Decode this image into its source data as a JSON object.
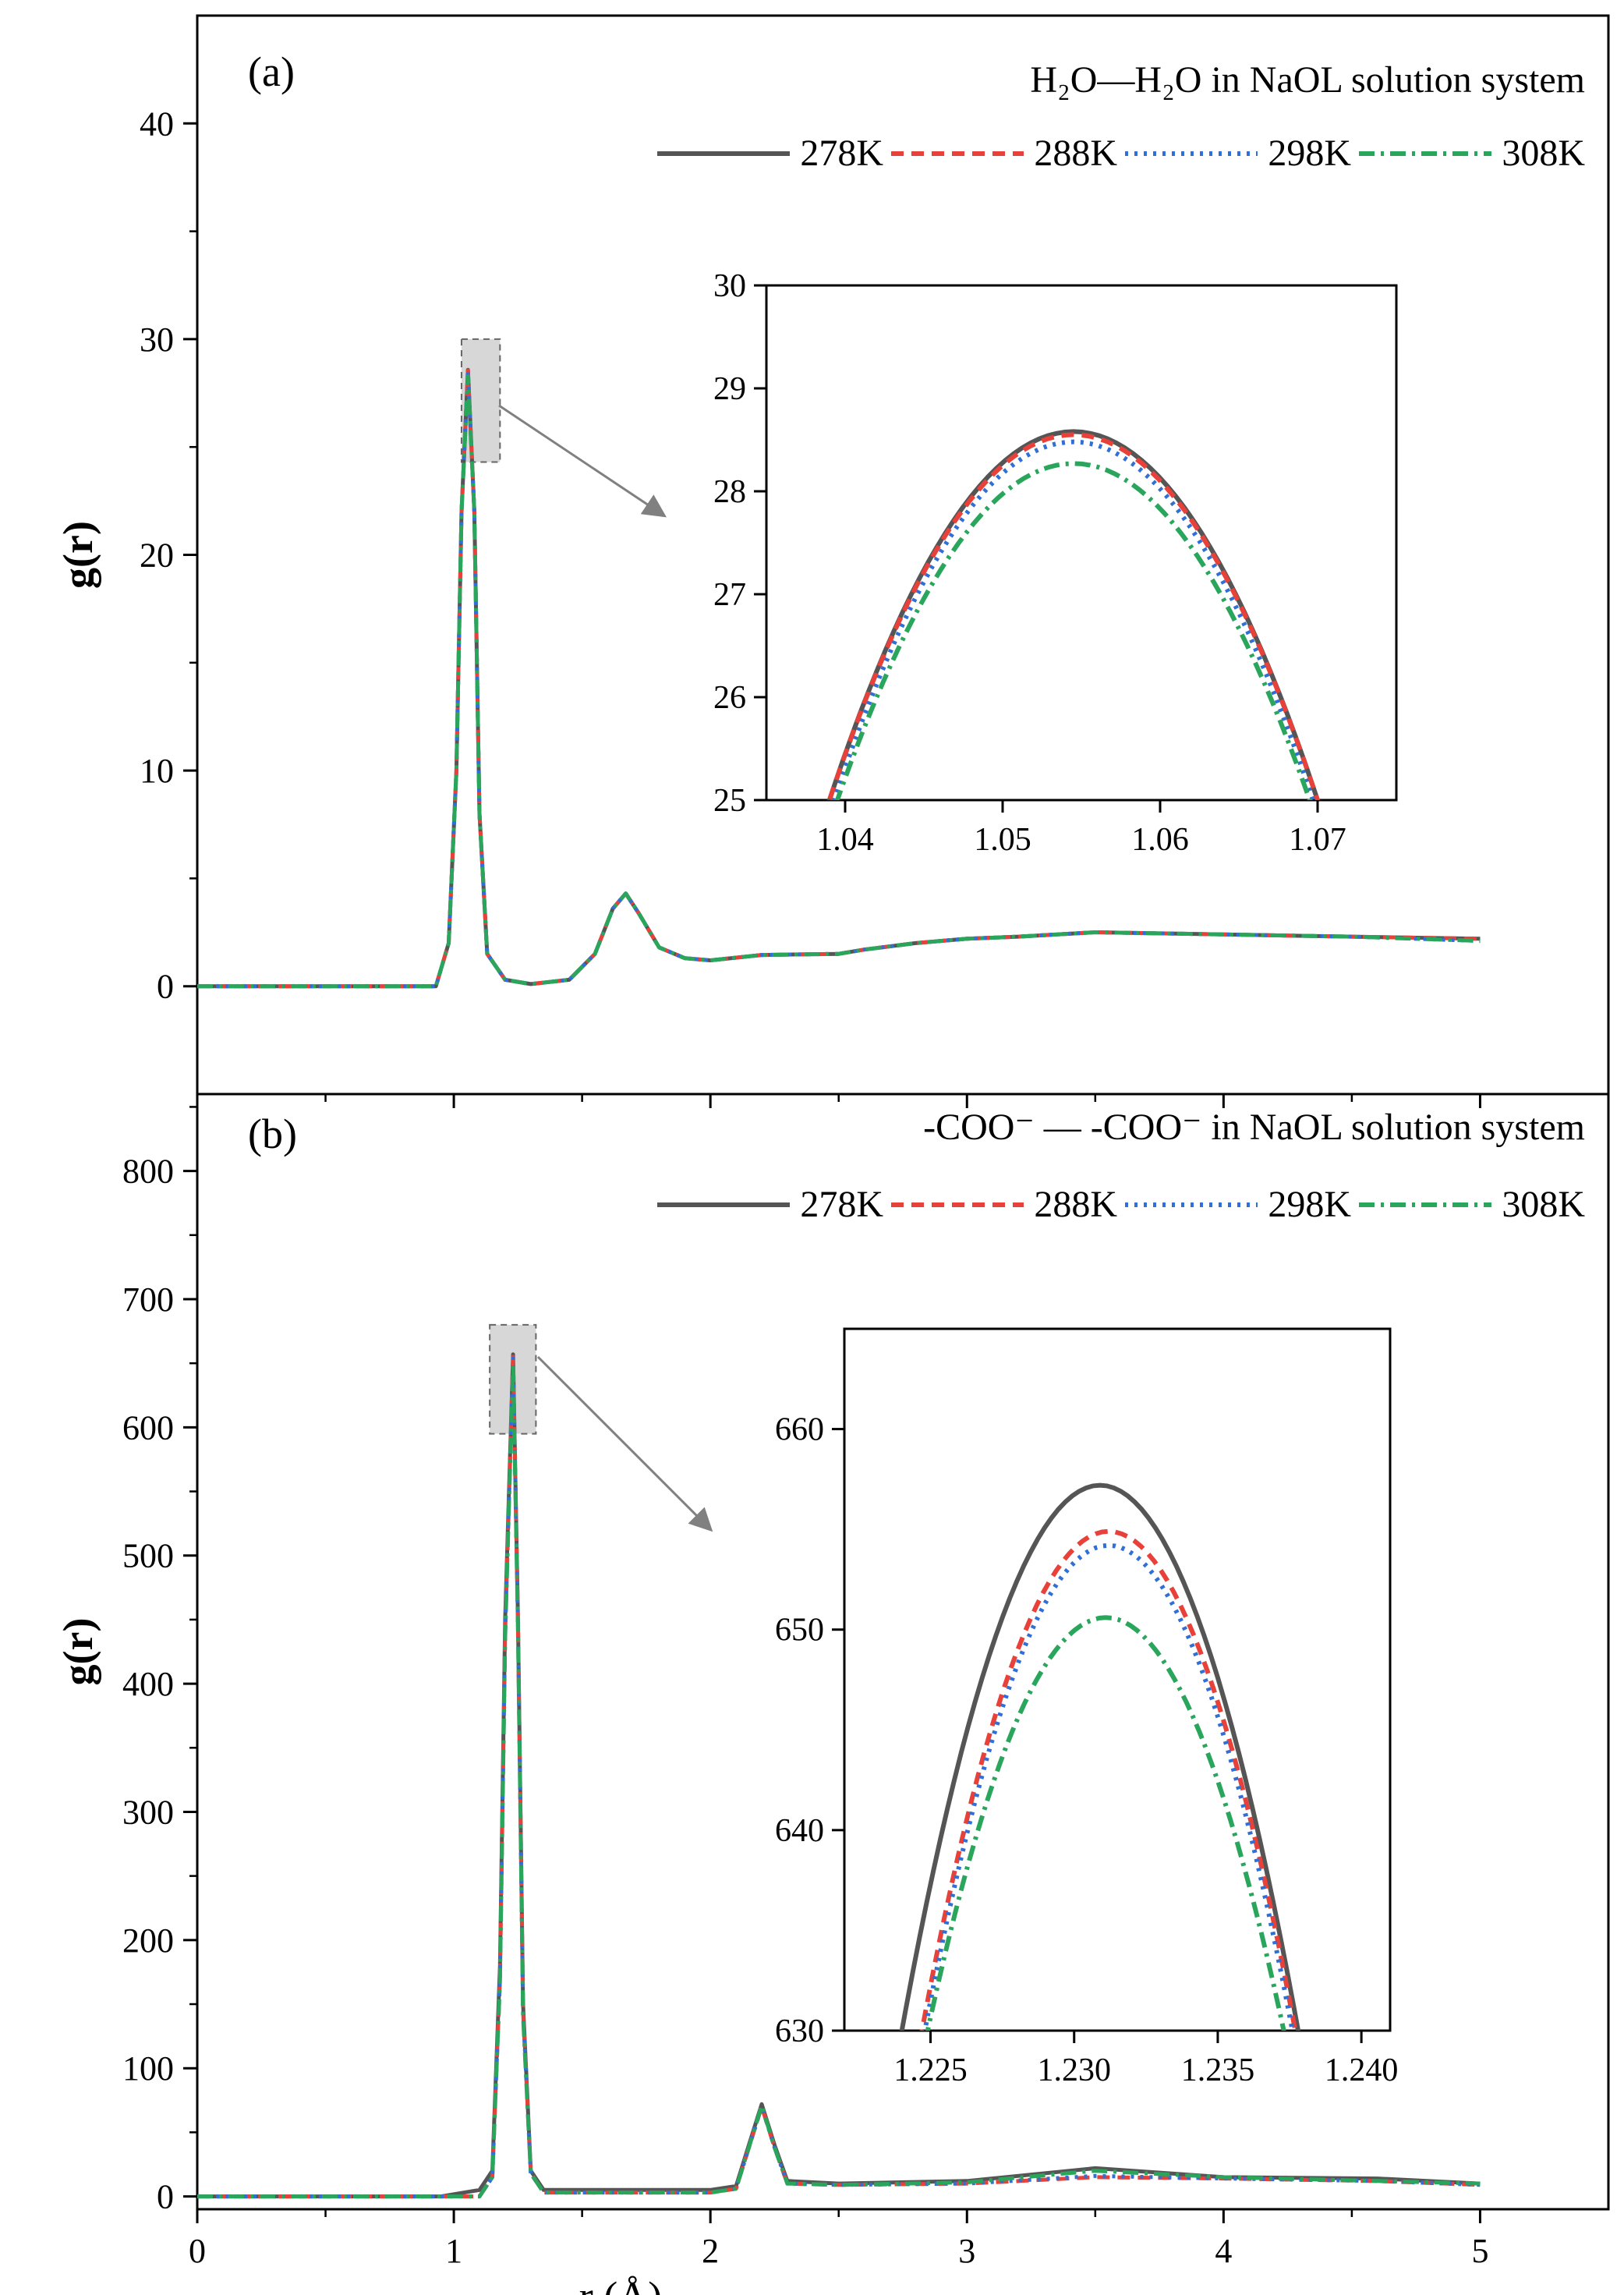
{
  "chart_data": [
    {
      "type": "line",
      "panel_label": "(a)",
      "title": "H₂O—H₂O in NaOL solution system",
      "xlabel": "r (Å)",
      "ylabel": "g(r)",
      "xlim": [
        0,
        5.5
      ],
      "ylim": [
        -5,
        45
      ],
      "x_ticks": [
        0,
        1,
        2,
        3,
        4,
        5
      ],
      "y_ticks": [
        0,
        10,
        20,
        30,
        40
      ],
      "grid": false,
      "legend_position": "top-right",
      "series": [
        {
          "name": "278K",
          "color": "#555555",
          "dash": "solid",
          "x": [
            0,
            0.93,
            0.98,
            1.01,
            1.03,
            1.055,
            1.08,
            1.1,
            1.13,
            1.2,
            1.3,
            1.45,
            1.55,
            1.62,
            1.67,
            1.72,
            1.8,
            1.9,
            2.0,
            2.2,
            2.5,
            2.6,
            2.8,
            3.0,
            3.2,
            3.5,
            4.0,
            4.5,
            5.0
          ],
          "y": [
            0,
            0,
            2.0,
            10.0,
            22.0,
            28.58,
            22.0,
            8.0,
            1.5,
            0.3,
            0.1,
            0.3,
            1.5,
            3.6,
            4.3,
            3.4,
            1.8,
            1.3,
            1.2,
            1.45,
            1.5,
            1.7,
            2.0,
            2.2,
            2.3,
            2.5,
            2.4,
            2.3,
            2.2
          ]
        },
        {
          "name": "288K",
          "color": "#e8413a",
          "dash": "16 10",
          "x": [
            0,
            0.93,
            0.98,
            1.01,
            1.03,
            1.055,
            1.08,
            1.1,
            1.13,
            1.2,
            1.3,
            1.45,
            1.55,
            1.62,
            1.67,
            1.72,
            1.8,
            1.9,
            2.0,
            2.2,
            2.5,
            2.6,
            2.8,
            3.0,
            3.2,
            3.5,
            4.0,
            4.5,
            5.0
          ],
          "y": [
            0,
            0,
            2.0,
            10.0,
            22.0,
            28.55,
            22.0,
            8.0,
            1.5,
            0.3,
            0.1,
            0.3,
            1.5,
            3.6,
            4.3,
            3.4,
            1.8,
            1.3,
            1.2,
            1.45,
            1.5,
            1.7,
            2.0,
            2.2,
            2.3,
            2.5,
            2.4,
            2.3,
            2.2
          ]
        },
        {
          "name": "298K",
          "color": "#2f6fd6",
          "dash": "4 8",
          "x": [
            0,
            0.93,
            0.98,
            1.01,
            1.03,
            1.055,
            1.08,
            1.1,
            1.13,
            1.2,
            1.3,
            1.45,
            1.55,
            1.62,
            1.67,
            1.72,
            1.8,
            1.9,
            2.0,
            2.2,
            2.5,
            2.6,
            2.8,
            3.0,
            3.2,
            3.5,
            4.0,
            4.5,
            5.0
          ],
          "y": [
            0,
            0,
            2.0,
            10.0,
            22.0,
            28.48,
            22.0,
            8.0,
            1.5,
            0.3,
            0.1,
            0.3,
            1.5,
            3.6,
            4.3,
            3.4,
            1.8,
            1.3,
            1.2,
            1.45,
            1.5,
            1.7,
            2.0,
            2.2,
            2.3,
            2.5,
            2.4,
            2.3,
            2.1
          ]
        },
        {
          "name": "308K",
          "color": "#2aa65c",
          "dash": "20 8 4 8",
          "x": [
            0,
            0.93,
            0.98,
            1.01,
            1.03,
            1.055,
            1.08,
            1.1,
            1.13,
            1.2,
            1.3,
            1.45,
            1.55,
            1.62,
            1.67,
            1.72,
            1.8,
            1.9,
            2.0,
            2.2,
            2.5,
            2.6,
            2.8,
            3.0,
            3.2,
            3.5,
            4.0,
            4.5,
            5.0
          ],
          "y": [
            0,
            0,
            2.0,
            10.0,
            22.0,
            28.27,
            22.0,
            8.0,
            1.5,
            0.3,
            0.1,
            0.3,
            1.5,
            3.6,
            4.3,
            3.4,
            1.8,
            1.3,
            1.2,
            1.45,
            1.5,
            1.7,
            2.0,
            2.2,
            2.3,
            2.5,
            2.4,
            2.3,
            2.1
          ]
        }
      ],
      "inset": {
        "xlim": [
          1.035,
          1.075
        ],
        "ylim": [
          25,
          30
        ],
        "x_ticks": [
          1.04,
          1.05,
          1.06,
          1.07
        ],
        "y_ticks": [
          25,
          26,
          27,
          28,
          29,
          30
        ],
        "curves": [
          {
            "name": "278K",
            "peak_x": 1.0545,
            "peak_y": 28.58,
            "half_width": 0.0155
          },
          {
            "name": "288K",
            "peak_x": 1.0545,
            "peak_y": 28.55,
            "half_width": 0.0155
          },
          {
            "name": "298K",
            "peak_x": 1.0545,
            "peak_y": 28.48,
            "half_width": 0.0152
          },
          {
            "name": "308K",
            "peak_x": 1.0545,
            "peak_y": 28.27,
            "half_width": 0.015
          }
        ]
      }
    },
    {
      "type": "line",
      "panel_label": "(b)",
      "title": "-COO⁻ — -COO⁻ in NaOL solution system",
      "xlabel": "r (Å)",
      "ylabel": "g(r)",
      "xlim": [
        0,
        5.5
      ],
      "ylim": [
        -10,
        860
      ],
      "x_ticks": [
        0,
        1,
        2,
        3,
        4,
        5
      ],
      "y_ticks": [
        0,
        100,
        200,
        300,
        400,
        500,
        600,
        700,
        800
      ],
      "grid": false,
      "legend_position": "top-right",
      "series": [
        {
          "name": "278K",
          "color": "#555555",
          "dash": "solid",
          "x": [
            0,
            0.95,
            1.1,
            1.15,
            1.18,
            1.2,
            1.231,
            1.25,
            1.27,
            1.3,
            1.35,
            2.0,
            2.1,
            2.15,
            2.2,
            2.25,
            2.3,
            2.5,
            3.0,
            3.5,
            4.0,
            4.6,
            5.0
          ],
          "y": [
            0,
            0,
            5,
            20,
            180,
            450,
            657,
            450,
            150,
            20,
            5,
            5,
            8,
            40,
            72,
            40,
            12,
            10,
            12,
            22,
            15,
            14,
            10
          ]
        },
        {
          "name": "288K",
          "color": "#e8413a",
          "dash": "16 10",
          "x": [
            0,
            0.95,
            1.1,
            1.15,
            1.18,
            1.2,
            1.231,
            1.25,
            1.27,
            1.3,
            1.35,
            2.0,
            2.1,
            2.15,
            2.2,
            2.25,
            2.3,
            2.5,
            3.0,
            3.5,
            4.0,
            4.6,
            5.0
          ],
          "y": [
            0,
            0,
            0,
            15,
            170,
            440,
            655,
            445,
            145,
            18,
            3,
            3,
            6,
            38,
            70,
            38,
            10,
            9,
            10,
            15,
            14,
            12,
            9
          ]
        },
        {
          "name": "298K",
          "color": "#2f6fd6",
          "dash": "4 8",
          "x": [
            0,
            0.95,
            1.1,
            1.15,
            1.18,
            1.2,
            1.231,
            1.25,
            1.27,
            1.3,
            1.35,
            2.0,
            2.1,
            2.15,
            2.2,
            2.25,
            2.3,
            2.5,
            3.0,
            3.5,
            4.0,
            4.6,
            5.0
          ],
          "y": [
            0,
            0,
            0,
            15,
            170,
            440,
            654,
            445,
            145,
            18,
            3,
            3,
            6,
            38,
            70,
            38,
            10,
            9,
            10,
            16,
            14,
            12,
            9
          ]
        },
        {
          "name": "308K",
          "color": "#2aa65c",
          "dash": "20 8 4 8",
          "x": [
            0,
            0.95,
            1.1,
            1.15,
            1.18,
            1.2,
            1.231,
            1.25,
            1.27,
            1.3,
            1.35,
            2.0,
            2.1,
            2.15,
            2.2,
            2.25,
            2.3,
            2.5,
            3.0,
            3.5,
            4.0,
            4.6,
            5.0
          ],
          "y": [
            0,
            0,
            0,
            15,
            168,
            435,
            650,
            440,
            140,
            18,
            3,
            3,
            6,
            38,
            71,
            38,
            10,
            9,
            11,
            20,
            15,
            12,
            10
          ]
        }
      ],
      "inset": {
        "xlim": [
          1.222,
          1.241
        ],
        "ylim": [
          630,
          665
        ],
        "x_ticks": [
          1.225,
          1.23,
          1.235,
          1.24
        ],
        "x_tick_labels": [
          "1.225",
          "1.230",
          "1.235",
          "1.240"
        ],
        "y_ticks": [
          630,
          640,
          650,
          660
        ],
        "curves": [
          {
            "name": "278K",
            "peak_x": 1.2309,
            "peak_y": 657.2,
            "half_width": 0.0069
          },
          {
            "name": "288K",
            "peak_x": 1.2312,
            "peak_y": 654.9,
            "half_width": 0.0065
          },
          {
            "name": "298K",
            "peak_x": 1.2312,
            "peak_y": 654.2,
            "half_width": 0.0064
          },
          {
            "name": "308K",
            "peak_x": 1.2311,
            "peak_y": 650.6,
            "half_width": 0.0062
          }
        ]
      }
    }
  ]
}
